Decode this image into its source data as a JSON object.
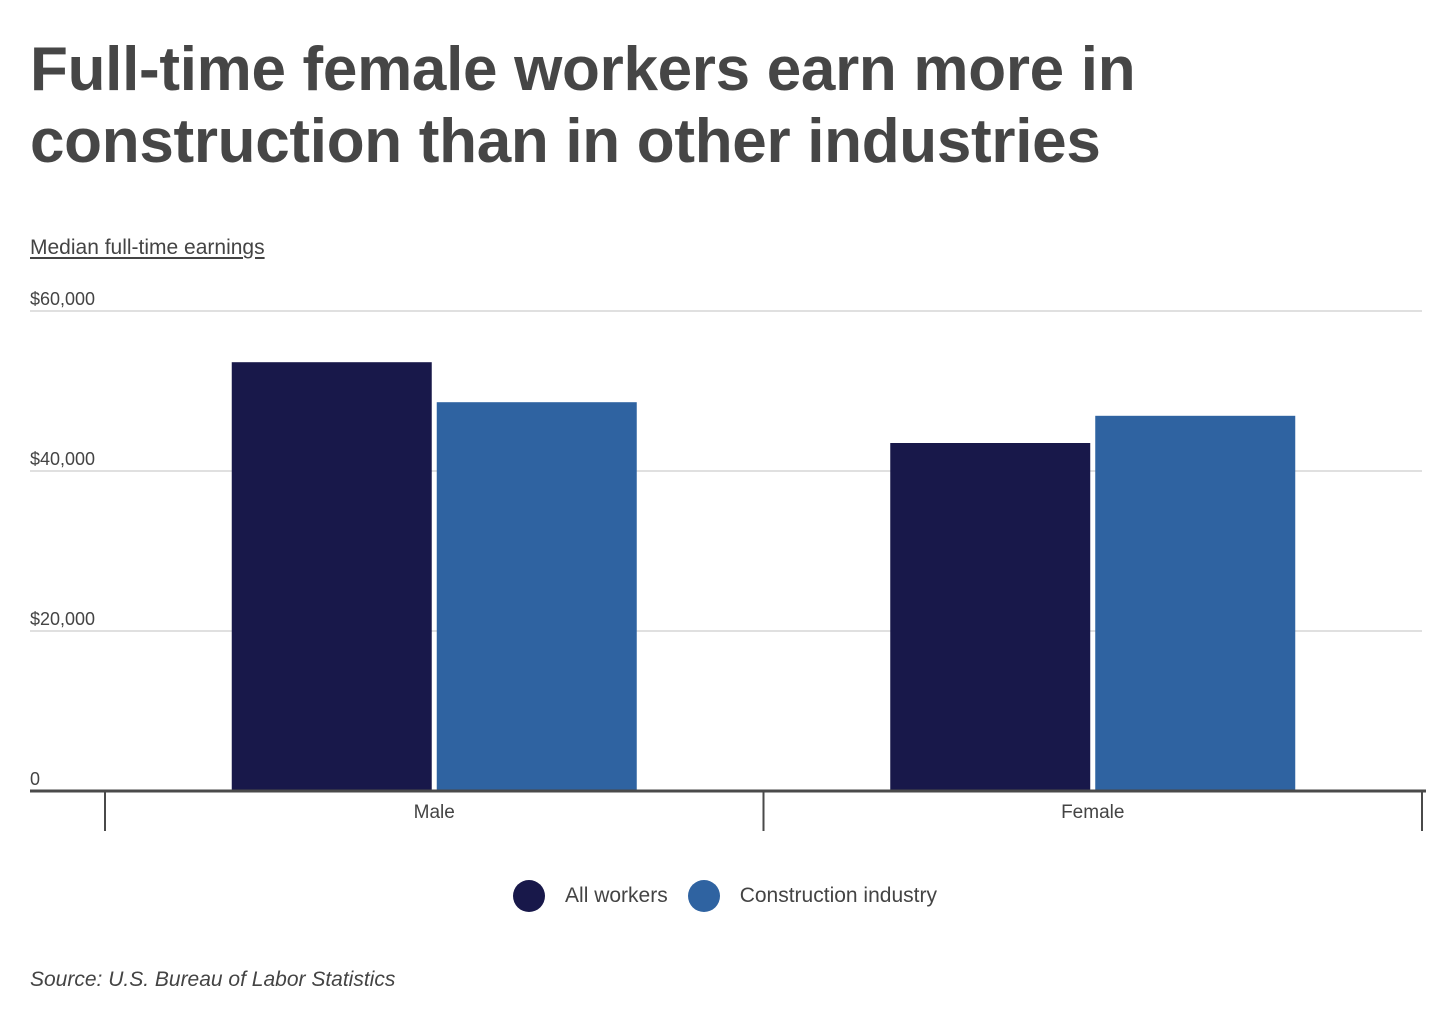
{
  "title": "Full-time female workers earn more in construction than in other industries",
  "source": "Source: U.S. Bureau of Labor Statistics",
  "chart_data": {
    "type": "bar",
    "title": "Full-time female workers earn more in construction than in other industries",
    "ylabel": "Median full-time earnings",
    "xlabel": "",
    "categories": [
      "Male",
      "Female"
    ],
    "series": [
      {
        "name": "All workers",
        "color": "#18184a",
        "values": [
          53600,
          43500
        ]
      },
      {
        "name": "Construction industry",
        "color": "#2f63a1",
        "values": [
          48600,
          46900
        ]
      }
    ],
    "ylim": [
      0,
      60000
    ],
    "yticks": [
      0,
      20000,
      40000,
      60000
    ],
    "ytick_labels": [
      "0",
      "$20,000",
      "$40,000",
      "$60,000"
    ],
    "grid": true,
    "legend_position": "bottom-center"
  }
}
